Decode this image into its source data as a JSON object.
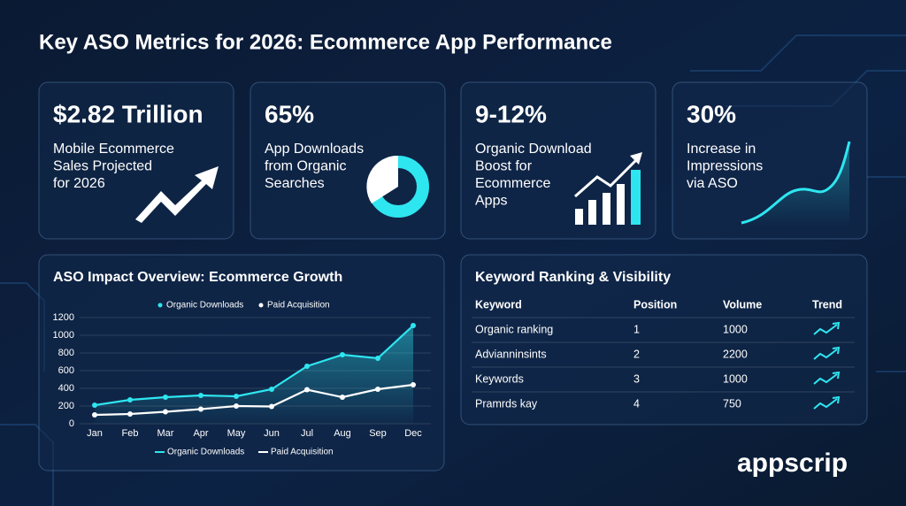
{
  "title": "Key ASO Metrics for 2026: Ecommerce App Performance",
  "cards": [
    {
      "value": "$2.82 Trillion",
      "desc_lines": [
        "Mobile Ecommerce",
        "Sales Projected",
        "for 2026"
      ]
    },
    {
      "value": "65%",
      "desc_lines": [
        "App Downloads",
        "from Organic",
        "Searches"
      ]
    },
    {
      "value": "9-12%",
      "desc_lines": [
        "Organic Download",
        "Boost for",
        "Ecommerce",
        "Apps"
      ]
    },
    {
      "value": "30%",
      "desc_lines": [
        "Increase in",
        "Impressions",
        "via ASO"
      ]
    }
  ],
  "chart_data": {
    "type": "line",
    "title": "ASO Impact Overview: Ecommerce Growth",
    "categories": [
      "Jan",
      "Feb",
      "Mar",
      "Apr",
      "May",
      "Jun",
      "Jul",
      "Aug",
      "Sep",
      "Dec"
    ],
    "series": [
      {
        "name": "Organic Downloads",
        "color": "#2ee6f0",
        "values": [
          210,
          270,
          300,
          320,
          310,
          390,
          650,
          780,
          740,
          1110
        ]
      },
      {
        "name": "Paid Acquisition",
        "color": "#ffffff",
        "values": [
          100,
          110,
          135,
          165,
          200,
          195,
          385,
          300,
          390,
          440
        ]
      }
    ],
    "ylim": [
      0,
      1200
    ],
    "yticks": [
      0,
      200,
      400,
      600,
      800,
      1000,
      1200
    ],
    "grid": true
  },
  "table": {
    "title": "Keyword Ranking & Visibility",
    "columns": [
      "Keyword",
      "Position",
      "Volume",
      "Trend"
    ],
    "rows": [
      [
        "Organic ranking",
        1,
        1000
      ],
      [
        "Advianninsints",
        2,
        2200
      ],
      [
        "Keywords",
        3,
        1000
      ],
      [
        "Pramrds kay",
        4,
        750
      ]
    ]
  },
  "brand": "appscrip"
}
